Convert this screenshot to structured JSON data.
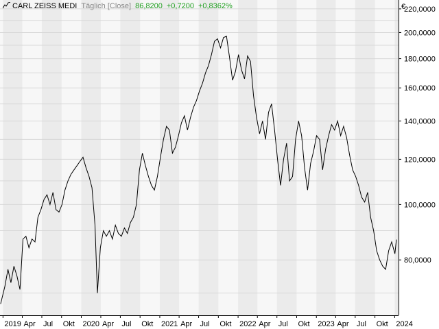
{
  "header": {
    "instrument": "CARL ZEISS MEDI",
    "mode": "Täglich [Close]",
    "last": "86,8200",
    "change": "+0,7200",
    "change_pct": "+0,8362%",
    "icon": "line-chart-icon",
    "color_positive": "#22a022"
  },
  "chart_data": {
    "type": "line",
    "title": "",
    "xlabel": "",
    "ylabel": "€",
    "yscale": "log",
    "grid": true,
    "ylim": [
      64,
      228
    ],
    "y_ticks": [
      80,
      100,
      120,
      140,
      160,
      180,
      200,
      220
    ],
    "y_tick_labels": [
      "80,0000",
      "100,0000",
      "120,0000",
      "140,0000",
      "160,0000",
      "180,0000",
      "200,0000",
      "220,0000"
    ],
    "x_tick_labels": [
      "2019",
      "Apr",
      "Jul",
      "Okt",
      "2020",
      "Apr",
      "Jul",
      "Okt",
      "2021",
      "Apr",
      "Jul",
      "Okt",
      "2022",
      "Apr",
      "Jul",
      "Okt",
      "2023",
      "Apr",
      "Jul",
      "Okt",
      "2024"
    ],
    "x_range": [
      "2018-12-18",
      "2024-01-19"
    ],
    "series": [
      {
        "color": "#000000",
        "points": [
          [
            "2018-12-21",
            67
          ],
          [
            "2019-01-10",
            72
          ],
          [
            "2019-01-24",
            77
          ],
          [
            "2019-02-07",
            73
          ],
          [
            "2019-02-21",
            78
          ],
          [
            "2019-03-07",
            75
          ],
          [
            "2019-03-21",
            71
          ],
          [
            "2019-04-04",
            87
          ],
          [
            "2019-04-18",
            88
          ],
          [
            "2019-05-02",
            84
          ],
          [
            "2019-05-16",
            87
          ],
          [
            "2019-05-30",
            86
          ],
          [
            "2019-06-13",
            95
          ],
          [
            "2019-06-27",
            98
          ],
          [
            "2019-07-11",
            102
          ],
          [
            "2019-07-25",
            104
          ],
          [
            "2019-08-08",
            100
          ],
          [
            "2019-08-22",
            105
          ],
          [
            "2019-09-05",
            98
          ],
          [
            "2019-09-19",
            97
          ],
          [
            "2019-10-03",
            100
          ],
          [
            "2019-10-17",
            106
          ],
          [
            "2019-10-31",
            110
          ],
          [
            "2019-11-14",
            113
          ],
          [
            "2019-11-28",
            115
          ],
          [
            "2019-12-12",
            117
          ],
          [
            "2019-12-26",
            119
          ],
          [
            "2020-01-09",
            121
          ],
          [
            "2020-01-23",
            116
          ],
          [
            "2020-02-06",
            112
          ],
          [
            "2020-02-20",
            107
          ],
          [
            "2020-03-05",
            92
          ],
          [
            "2020-03-16",
            70
          ],
          [
            "2020-03-30",
            84
          ],
          [
            "2020-04-13",
            90
          ],
          [
            "2020-04-27",
            88
          ],
          [
            "2020-05-11",
            90
          ],
          [
            "2020-05-25",
            87
          ],
          [
            "2020-06-08",
            92
          ],
          [
            "2020-06-22",
            89
          ],
          [
            "2020-07-06",
            88
          ],
          [
            "2020-07-20",
            91
          ],
          [
            "2020-08-03",
            89
          ],
          [
            "2020-08-17",
            93
          ],
          [
            "2020-08-31",
            95
          ],
          [
            "2020-09-14",
            100
          ],
          [
            "2020-09-28",
            115
          ],
          [
            "2020-10-12",
            123
          ],
          [
            "2020-10-26",
            117
          ],
          [
            "2020-11-09",
            112
          ],
          [
            "2020-11-23",
            108
          ],
          [
            "2020-12-07",
            106
          ],
          [
            "2020-12-21",
            112
          ],
          [
            "2021-01-04",
            121
          ],
          [
            "2021-01-18",
            130
          ],
          [
            "2021-02-01",
            137
          ],
          [
            "2021-02-15",
            135
          ],
          [
            "2021-03-01",
            123
          ],
          [
            "2021-03-15",
            126
          ],
          [
            "2021-03-29",
            132
          ],
          [
            "2021-04-12",
            139
          ],
          [
            "2021-04-26",
            143
          ],
          [
            "2021-05-10",
            135
          ],
          [
            "2021-05-24",
            142
          ],
          [
            "2021-06-07",
            148
          ],
          [
            "2021-06-21",
            152
          ],
          [
            "2021-07-05",
            158
          ],
          [
            "2021-07-19",
            163
          ],
          [
            "2021-08-02",
            170
          ],
          [
            "2021-08-16",
            175
          ],
          [
            "2021-08-30",
            183
          ],
          [
            "2021-09-13",
            193
          ],
          [
            "2021-09-27",
            195
          ],
          [
            "2021-10-11",
            188
          ],
          [
            "2021-10-25",
            196
          ],
          [
            "2021-11-08",
            197
          ],
          [
            "2021-11-22",
            181
          ],
          [
            "2021-12-06",
            165
          ],
          [
            "2021-12-20",
            171
          ],
          [
            "2022-01-03",
            183
          ],
          [
            "2022-01-17",
            172
          ],
          [
            "2022-01-31",
            166
          ],
          [
            "2022-02-14",
            182
          ],
          [
            "2022-02-28",
            178
          ],
          [
            "2022-03-14",
            155
          ],
          [
            "2022-03-28",
            142
          ],
          [
            "2022-04-11",
            133
          ],
          [
            "2022-04-25",
            140
          ],
          [
            "2022-05-09",
            130
          ],
          [
            "2022-05-23",
            145
          ],
          [
            "2022-06-06",
            150
          ],
          [
            "2022-06-20",
            135
          ],
          [
            "2022-07-04",
            120
          ],
          [
            "2022-07-18",
            108
          ],
          [
            "2022-08-01",
            120
          ],
          [
            "2022-08-15",
            128
          ],
          [
            "2022-08-29",
            110
          ],
          [
            "2022-09-12",
            112
          ],
          [
            "2022-09-26",
            130
          ],
          [
            "2022-10-10",
            140
          ],
          [
            "2022-10-24",
            132
          ],
          [
            "2022-11-07",
            116
          ],
          [
            "2022-11-21",
            106
          ],
          [
            "2022-12-05",
            118
          ],
          [
            "2022-12-19",
            124
          ],
          [
            "2023-01-02",
            132
          ],
          [
            "2023-01-16",
            130
          ],
          [
            "2023-01-30",
            115
          ],
          [
            "2023-02-13",
            125
          ],
          [
            "2023-02-27",
            132
          ],
          [
            "2023-03-13",
            138
          ],
          [
            "2023-03-27",
            135
          ],
          [
            "2023-04-10",
            140
          ],
          [
            "2023-04-24",
            132
          ],
          [
            "2023-05-08",
            137
          ],
          [
            "2023-05-22",
            131
          ],
          [
            "2023-06-05",
            122
          ],
          [
            "2023-06-19",
            115
          ],
          [
            "2023-07-03",
            112
          ],
          [
            "2023-07-17",
            108
          ],
          [
            "2023-07-31",
            103
          ],
          [
            "2023-08-14",
            101
          ],
          [
            "2023-08-28",
            105
          ],
          [
            "2023-09-11",
            95
          ],
          [
            "2023-09-25",
            90
          ],
          [
            "2023-10-09",
            83
          ],
          [
            "2023-10-23",
            80
          ],
          [
            "2023-11-06",
            78
          ],
          [
            "2023-11-20",
            77
          ],
          [
            "2023-12-04",
            83
          ],
          [
            "2023-12-18",
            86
          ],
          [
            "2024-01-02",
            82
          ],
          [
            "2024-01-09",
            86.82
          ]
        ]
      }
    ]
  }
}
